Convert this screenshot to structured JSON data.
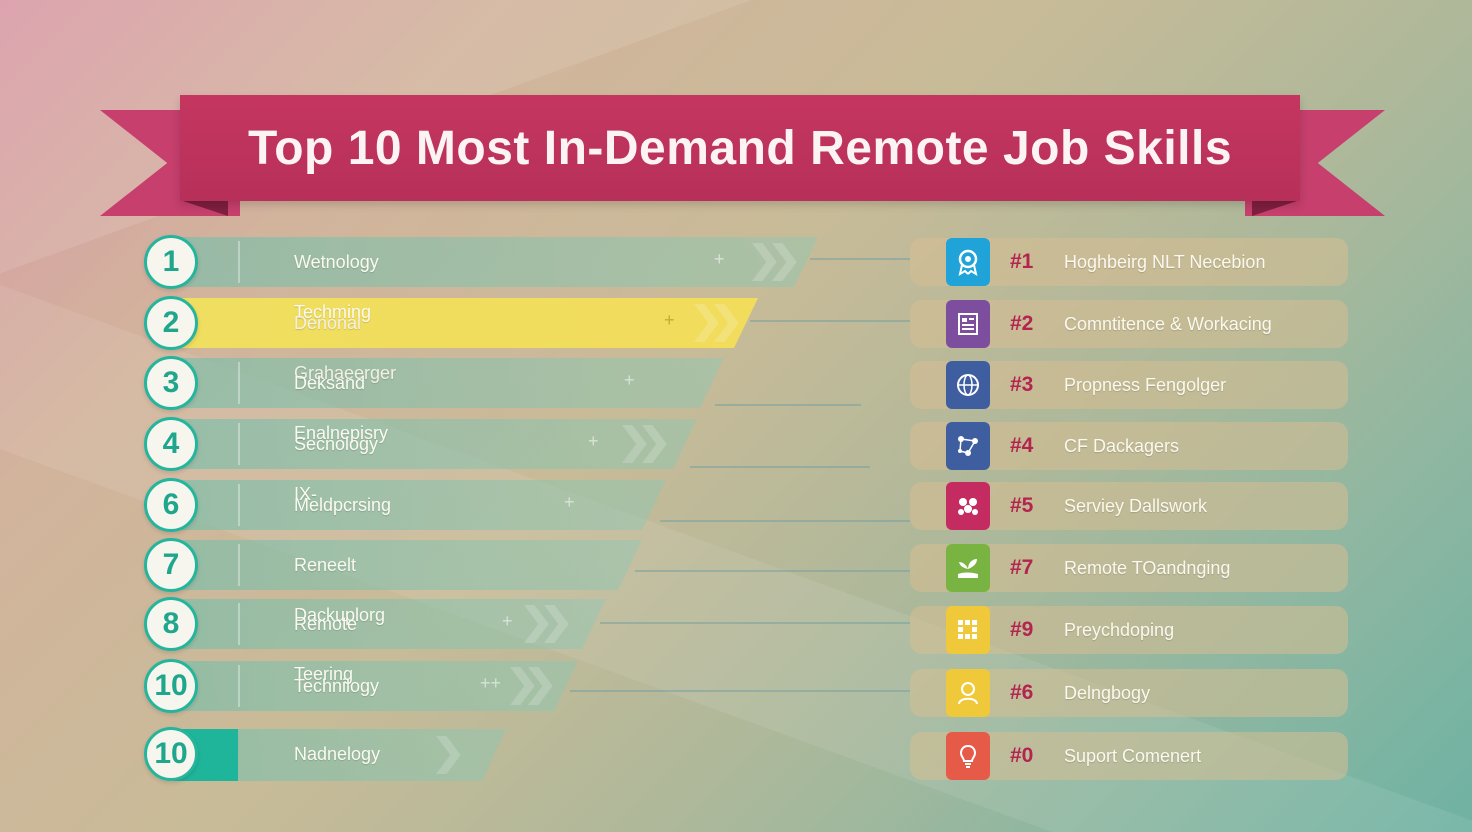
{
  "title": "Top 10 Most In-Demand Remote Job Skills",
  "left_ranks": [
    {
      "number": "1",
      "label": "Wetnology Techming"
    },
    {
      "number": "2",
      "label": "Denonal Grahaeerger"
    },
    {
      "number": "3",
      "label": "Deksand Enalnepisry"
    },
    {
      "number": "4",
      "label": "Secnology IX-"
    },
    {
      "number": "6",
      "label": "Meldpcrsing"
    },
    {
      "number": "7",
      "label": "Reneelt Dackuplorg"
    },
    {
      "number": "8",
      "label": "Remote Teering"
    },
    {
      "number": "10",
      "label": "Technilogy"
    },
    {
      "number": "10",
      "label": "Nadnelogy"
    }
  ],
  "right_skills": [
    {
      "rank": "#1",
      "label": "Hoghbeirg NLT Necebion",
      "icon": "award-icon",
      "color": "#1fa3d9"
    },
    {
      "rank": "#2",
      "label": "Comntitence & Workacing",
      "icon": "document-icon",
      "color": "#7d4e9e"
    },
    {
      "rank": "#3",
      "label": "Propness Fengolger",
      "icon": "globe-icon",
      "color": "#3f5ea0"
    },
    {
      "rank": "#4",
      "label": "CF Dackagers",
      "icon": "network-icon",
      "color": "#3f5ea0"
    },
    {
      "rank": "#5",
      "label": "Serviey Dallswork",
      "icon": "team-icon",
      "color": "#c42c61"
    },
    {
      "rank": "#7",
      "label": "Remote TOandnging",
      "icon": "plant-hand-icon",
      "color": "#79b443"
    },
    {
      "rank": "#9",
      "label": "Preychdoping",
      "icon": "grid-icon",
      "color": "#f0c93a"
    },
    {
      "rank": "#6",
      "label": "Delngbogy",
      "icon": "person-icon",
      "color": "#f0c93a"
    },
    {
      "rank": "#0",
      "label": "Suport Comenert",
      "icon": "lightbulb-icon",
      "color": "#e65a48"
    }
  ]
}
